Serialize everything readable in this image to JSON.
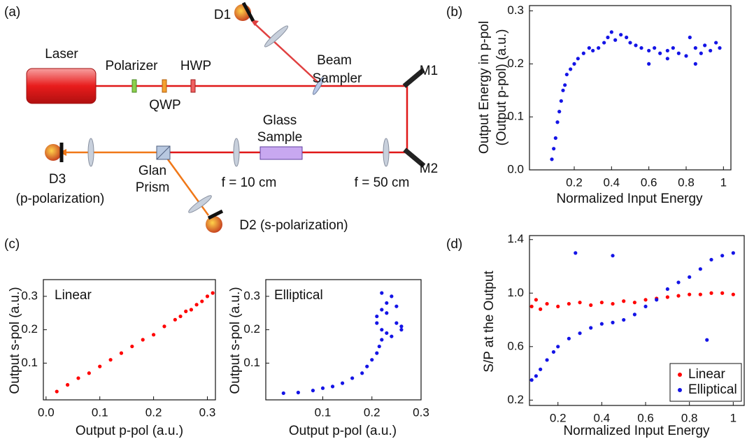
{
  "diagram": {
    "panel_label": "(a)",
    "laser": "Laser",
    "polarizer": "Polarizer",
    "qwp": "QWP",
    "hwp": "HWP",
    "beam_sampler": [
      "Beam",
      "Sampler"
    ],
    "d1": "D1",
    "m1": "M1",
    "m2": "M2",
    "glass_sample": [
      "Glass",
      "Sample"
    ],
    "lens_10": "f = 10 cm",
    "lens_50": "f = 50 cm",
    "glan_prism": [
      "Glan",
      "Prism"
    ],
    "d3": "D3",
    "d3_polarization": "(p-polarization)",
    "d2": "D2 (s-polarization)"
  },
  "chart_data": [
    {
      "type": "scatter",
      "panel_label": "(b)",
      "xlabel": "Normalized Input Energy",
      "ylabel": [
        "Output Energy in p-pol",
        "(Output p-pol)  (a.u.)"
      ],
      "xlim": [
        -0.04,
        1.04
      ],
      "ylim": [
        0,
        0.31
      ],
      "xticks": [
        0.2,
        0.4,
        0.6,
        0.8,
        1
      ],
      "yticks": [
        {
          "value": 0,
          "label": "0.0"
        },
        0.1,
        0.2,
        0.3
      ],
      "series": [
        {
          "color": "#1414e6",
          "x": [
            0.08,
            0.09,
            0.1,
            0.11,
            0.12,
            0.13,
            0.14,
            0.15,
            0.16,
            0.18,
            0.2,
            0.22,
            0.25,
            0.28,
            0.3,
            0.33,
            0.36,
            0.38,
            0.4,
            0.42,
            0.45,
            0.48,
            0.5,
            0.53,
            0.56,
            0.6,
            0.63,
            0.66,
            0.7,
            0.73,
            0.76,
            0.8,
            0.82,
            0.85,
            0.88,
            0.9,
            0.93,
            0.96,
            0.98,
            0.6,
            0.7,
            0.85
          ],
          "values": [
            0.02,
            0.04,
            0.06,
            0.09,
            0.11,
            0.13,
            0.15,
            0.16,
            0.18,
            0.19,
            0.2,
            0.21,
            0.22,
            0.23,
            0.225,
            0.23,
            0.24,
            0.25,
            0.26,
            0.245,
            0.255,
            0.25,
            0.24,
            0.235,
            0.23,
            0.225,
            0.23,
            0.22,
            0.225,
            0.23,
            0.22,
            0.215,
            0.25,
            0.23,
            0.22,
            0.235,
            0.225,
            0.24,
            0.23,
            0.2,
            0.21,
            0.2
          ]
        }
      ]
    },
    {
      "type": "scatter",
      "panel_label": "(c)",
      "annotation": "Linear",
      "xlabel": "Output p-pol (a.u.)",
      "ylabel": "Output s-pol (a.u.)",
      "xlim": [
        -0.005,
        0.315
      ],
      "ylim": [
        -0.01,
        0.35
      ],
      "xticks": [
        {
          "value": 0,
          "label": "0.0"
        },
        0.1,
        0.2,
        0.3
      ],
      "yticks": [
        0.1,
        0.2,
        0.3
      ],
      "series": [
        {
          "color": "#ff0000",
          "x": [
            0.02,
            0.04,
            0.06,
            0.08,
            0.1,
            0.12,
            0.14,
            0.16,
            0.18,
            0.2,
            0.22,
            0.24,
            0.26,
            0.28,
            0.3,
            0.31,
            0.25,
            0.27,
            0.29
          ],
          "values": [
            0.015,
            0.035,
            0.055,
            0.07,
            0.09,
            0.11,
            0.13,
            0.15,
            0.17,
            0.185,
            0.21,
            0.23,
            0.255,
            0.275,
            0.3,
            0.31,
            0.24,
            0.26,
            0.285
          ]
        }
      ]
    },
    {
      "type": "scatter",
      "annotation": "Elliptical",
      "xlabel": "Output p-pol (a.u.)",
      "ylabel": "Output s-pol (a.u.)",
      "xlim": [
        -0.016,
        0.3
      ],
      "ylim": [
        -0.01,
        0.35
      ],
      "xticks": [
        0.1,
        0.2,
        0.3
      ],
      "yticks": [
        0.1,
        0.2,
        0.3
      ],
      "series": [
        {
          "color": "#1414e6",
          "x": [
            0.02,
            0.05,
            0.08,
            0.1,
            0.12,
            0.14,
            0.16,
            0.18,
            0.19,
            0.2,
            0.21,
            0.215,
            0.22,
            0.23,
            0.22,
            0.25,
            0.26,
            0.24,
            0.21,
            0.22,
            0.23,
            0.24,
            0.22,
            0.25,
            0.21,
            0.23,
            0.26
          ],
          "values": [
            0.01,
            0.012,
            0.018,
            0.025,
            0.03,
            0.04,
            0.055,
            0.07,
            0.09,
            0.11,
            0.13,
            0.15,
            0.17,
            0.19,
            0.2,
            0.22,
            0.2,
            0.18,
            0.24,
            0.26,
            0.28,
            0.3,
            0.31,
            0.27,
            0.22,
            0.25,
            0.21
          ]
        }
      ]
    },
    {
      "type": "scatter",
      "panel_label": "(d)",
      "xlabel": "Normalized Input Energy",
      "ylabel": "S/P at the Output",
      "xlim": [
        0.07,
        1.05
      ],
      "ylim": [
        0.16,
        1.43
      ],
      "legend": "lower right",
      "xticks": [
        0.2,
        0.4,
        0.6,
        0.8,
        1
      ],
      "yticks": [
        0.2,
        0.6,
        {
          "value": 1,
          "label": "1.0"
        },
        1.4
      ],
      "series": [
        {
          "name": "Linear",
          "color": "#ff0000",
          "x": [
            0.08,
            0.1,
            0.12,
            0.15,
            0.2,
            0.25,
            0.3,
            0.35,
            0.4,
            0.45,
            0.5,
            0.55,
            0.6,
            0.65,
            0.7,
            0.75,
            0.8,
            0.85,
            0.9,
            0.95,
            1.0
          ],
          "values": [
            0.9,
            0.95,
            0.88,
            0.92,
            0.9,
            0.92,
            0.93,
            0.91,
            0.93,
            0.92,
            0.94,
            0.93,
            0.95,
            0.96,
            0.97,
            0.98,
            0.99,
            0.99,
            1.0,
            1.0,
            0.99
          ]
        },
        {
          "name": "Elliptical",
          "color": "#1414e6",
          "x": [
            0.08,
            0.1,
            0.12,
            0.15,
            0.18,
            0.2,
            0.25,
            0.3,
            0.35,
            0.4,
            0.45,
            0.5,
            0.55,
            0.6,
            0.65,
            0.7,
            0.75,
            0.8,
            0.85,
            0.9,
            0.95,
            1.0,
            0.28,
            0.45,
            0.88
          ],
          "values": [
            0.35,
            0.38,
            0.43,
            0.5,
            0.56,
            0.6,
            0.66,
            0.7,
            0.74,
            0.77,
            0.78,
            0.8,
            0.84,
            0.9,
            0.95,
            1.03,
            1.08,
            1.12,
            1.18,
            1.25,
            1.28,
            1.3,
            1.3,
            1.28,
            0.65
          ]
        }
      ]
    }
  ]
}
